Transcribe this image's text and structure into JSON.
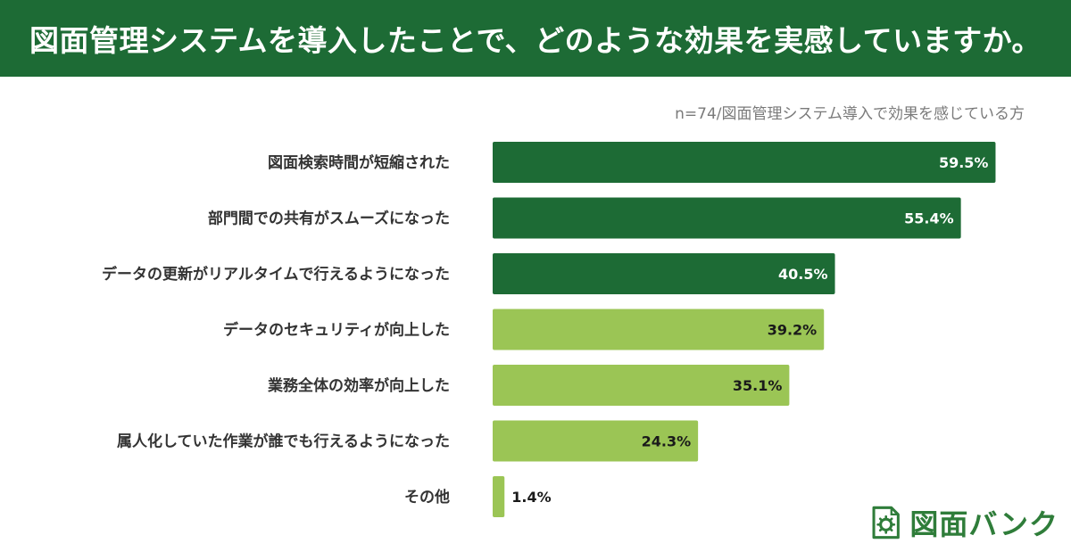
{
  "header": {
    "title": "図面管理システムを導入したことで、どのような効果を実感していますか。"
  },
  "note": "n=74/図面管理システム導入で効果を感じている方",
  "logo": {
    "text": "図面バンク",
    "icon": "gear-document-icon"
  },
  "colors": {
    "header_bg": "#1d6b35",
    "bar_dark": "#1d6b35",
    "bar_light": "#9bc555",
    "label_on_dark": "#ffffff",
    "label_on_light": "#1a1a1a"
  },
  "chart_data": {
    "type": "bar",
    "orientation": "horizontal",
    "categories": [
      "図面検索時間が短縮された",
      "部門間での共有がスムーズになった",
      "データの更新がリアルタイムで行えるようになった",
      "データのセキュリティが向上した",
      "業務全体の効率が向上した",
      "属人化していた作業が誰でも行えるようになった",
      "その他"
    ],
    "values": [
      59.5,
      55.4,
      40.5,
      39.2,
      35.1,
      24.3,
      1.4
    ],
    "value_labels": [
      "59.5%",
      "55.4%",
      "40.5%",
      "39.2%",
      "35.1%",
      "24.3%",
      "1.4%"
    ],
    "highlight": [
      true,
      true,
      true,
      false,
      false,
      false,
      false
    ],
    "xlim": [
      0,
      100
    ],
    "grid": false,
    "legend": "none"
  }
}
